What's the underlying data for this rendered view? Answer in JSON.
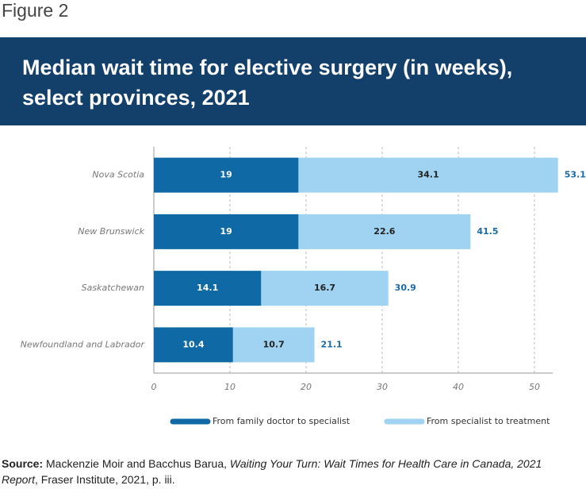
{
  "figure_label": "Figure 2",
  "chart_data": {
    "type": "stacked-barh",
    "title": "Median wait time for elective surgery (in weeks), select provinces, 2021",
    "categories": [
      "Nova Scotia",
      "New Brunswick",
      "Saskatchewan",
      "Newfoundland and Labrador"
    ],
    "series": [
      {
        "name": "From family doctor to specialist",
        "color": "#0f69a5",
        "values": [
          19,
          19,
          14.1,
          10.4
        ]
      },
      {
        "name": "From specialist to treatment",
        "color": "#9fd3f1",
        "values": [
          34.1,
          22.6,
          16.7,
          10.7
        ]
      }
    ],
    "totals": [
      53.1,
      41.5,
      30.9,
      21.1
    ],
    "xlim": [
      0,
      52.4
    ],
    "xticks": [
      0,
      10,
      20,
      30,
      40,
      50
    ],
    "grid": true
  },
  "source": {
    "label": "Source:",
    "authors": "Mackenzie Moir and Bacchus Barua,",
    "work": "Waiting Your Turn: Wait Times for Health Care in Canada, 2021 Report",
    "rest": ", Fraser Institute, 2021, p. iii."
  }
}
